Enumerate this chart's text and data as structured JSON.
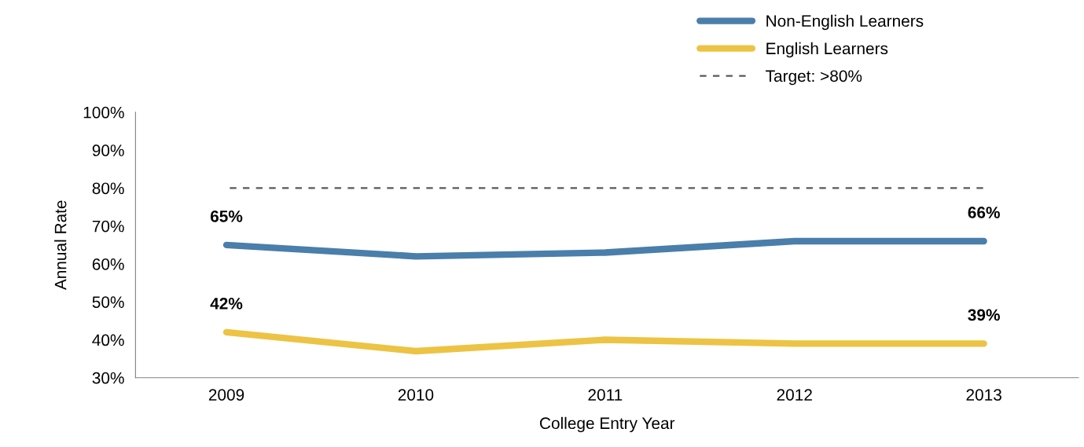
{
  "chart_data": {
    "type": "line",
    "xlabel": "College Entry Year",
    "ylabel": "Annual Rate",
    "categories": [
      "2009",
      "2010",
      "2011",
      "2012",
      "2013"
    ],
    "series": [
      {
        "name": "Non-English Learners",
        "color": "#4a7eab",
        "values": [
          65,
          62,
          63,
          66,
          66
        ],
        "value_labels": [
          "65%",
          null,
          null,
          null,
          "66%"
        ]
      },
      {
        "name": "English Learners",
        "color": "#edc344",
        "values": [
          42,
          37,
          40,
          39,
          39
        ],
        "value_labels": [
          "42%",
          null,
          null,
          null,
          "39%"
        ]
      }
    ],
    "ylim": [
      30,
      100
    ],
    "yticks": [
      {
        "value": 30,
        "label": "30%"
      },
      {
        "value": 40,
        "label": "40%"
      },
      {
        "value": 50,
        "label": "50%"
      },
      {
        "value": 60,
        "label": "60%"
      },
      {
        "value": 70,
        "label": "70%"
      },
      {
        "value": 80,
        "label": "80%"
      },
      {
        "value": 90,
        "label": "90%"
      },
      {
        "value": 100,
        "label": "100%"
      }
    ],
    "ref_lines": [
      {
        "axis": "y",
        "value": 80,
        "label": "Target: >80%",
        "color": "#595959",
        "line_style": "dashed"
      }
    ],
    "legend": "top right",
    "grid": false,
    "marker": "none",
    "line_style": "solid"
  }
}
